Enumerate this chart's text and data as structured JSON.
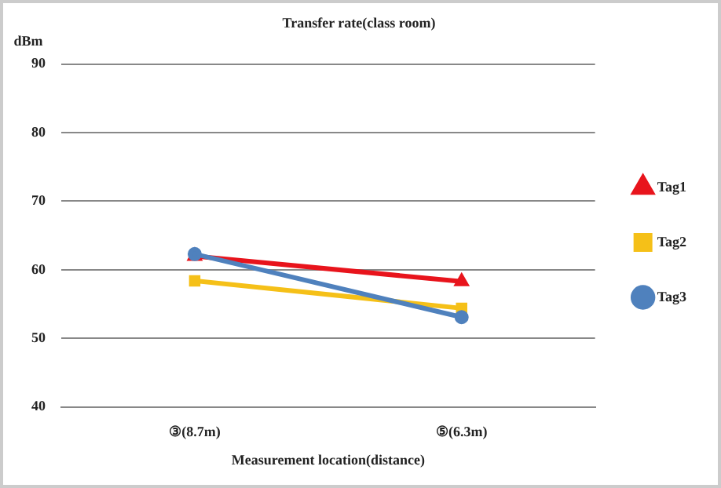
{
  "chart_data": {
    "type": "line",
    "title": "Transfer rate(class room)",
    "xlabel": "Measurement location(distance)",
    "ylabel": "dBm",
    "categories": [
      "③(8.7m)",
      "⑤(6.3m)"
    ],
    "series": [
      {
        "name": "Tag1",
        "color": "#e8141c",
        "values": [
          62,
          58.3
        ],
        "marker": "triangle"
      },
      {
        "name": "Tag2",
        "color": "#f5c018",
        "values": [
          58.4,
          54.4
        ],
        "marker": "square"
      },
      {
        "name": "Tag3",
        "color": "#4f81bd",
        "values": [
          62.3,
          53.1
        ],
        "marker": "circle"
      }
    ],
    "ylim": [
      40,
      90
    ],
    "yticks": [
      40,
      50,
      60,
      70,
      80,
      90
    ],
    "grid": "y",
    "legend": "right",
    "line_style": "solid"
  }
}
